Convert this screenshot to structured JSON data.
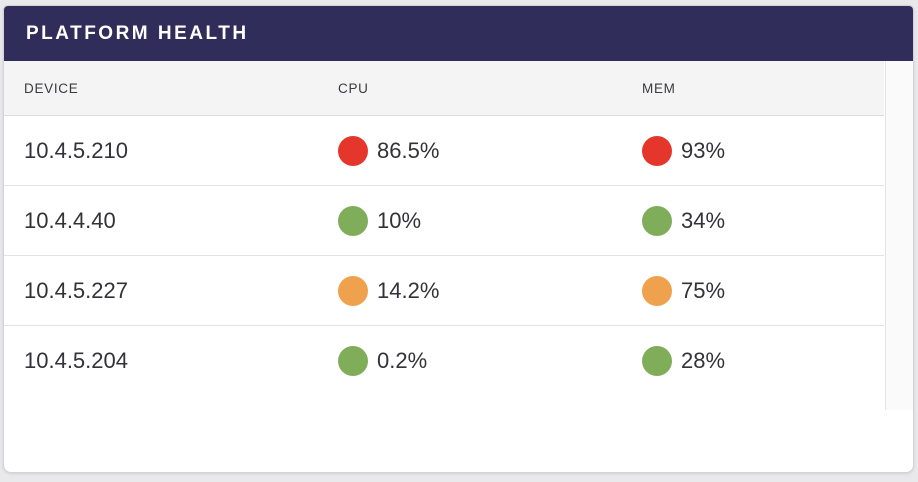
{
  "panel": {
    "title": "PLATFORM HEALTH"
  },
  "table": {
    "columns": [
      "DEVICE",
      "CPU",
      "MEM"
    ],
    "rows": [
      {
        "device": "10.4.5.210",
        "cpu": {
          "value": "86.5%",
          "status": "critical"
        },
        "mem": {
          "value": "93%",
          "status": "critical"
        }
      },
      {
        "device": "10.4.4.40",
        "cpu": {
          "value": "10%",
          "status": "ok"
        },
        "mem": {
          "value": "34%",
          "status": "ok"
        }
      },
      {
        "device": "10.4.5.227",
        "cpu": {
          "value": "14.2%",
          "status": "warning"
        },
        "mem": {
          "value": "75%",
          "status": "warning"
        }
      },
      {
        "device": "10.4.5.204",
        "cpu": {
          "value": "0.2%",
          "status": "ok"
        },
        "mem": {
          "value": "28%",
          "status": "ok"
        }
      }
    ]
  },
  "status_colors": {
    "critical": "#e5362c",
    "warning": "#efa14e",
    "ok": "#7fad59"
  },
  "theme": {
    "header_bg": "#312d5a",
    "header_text": "#ffffff"
  }
}
